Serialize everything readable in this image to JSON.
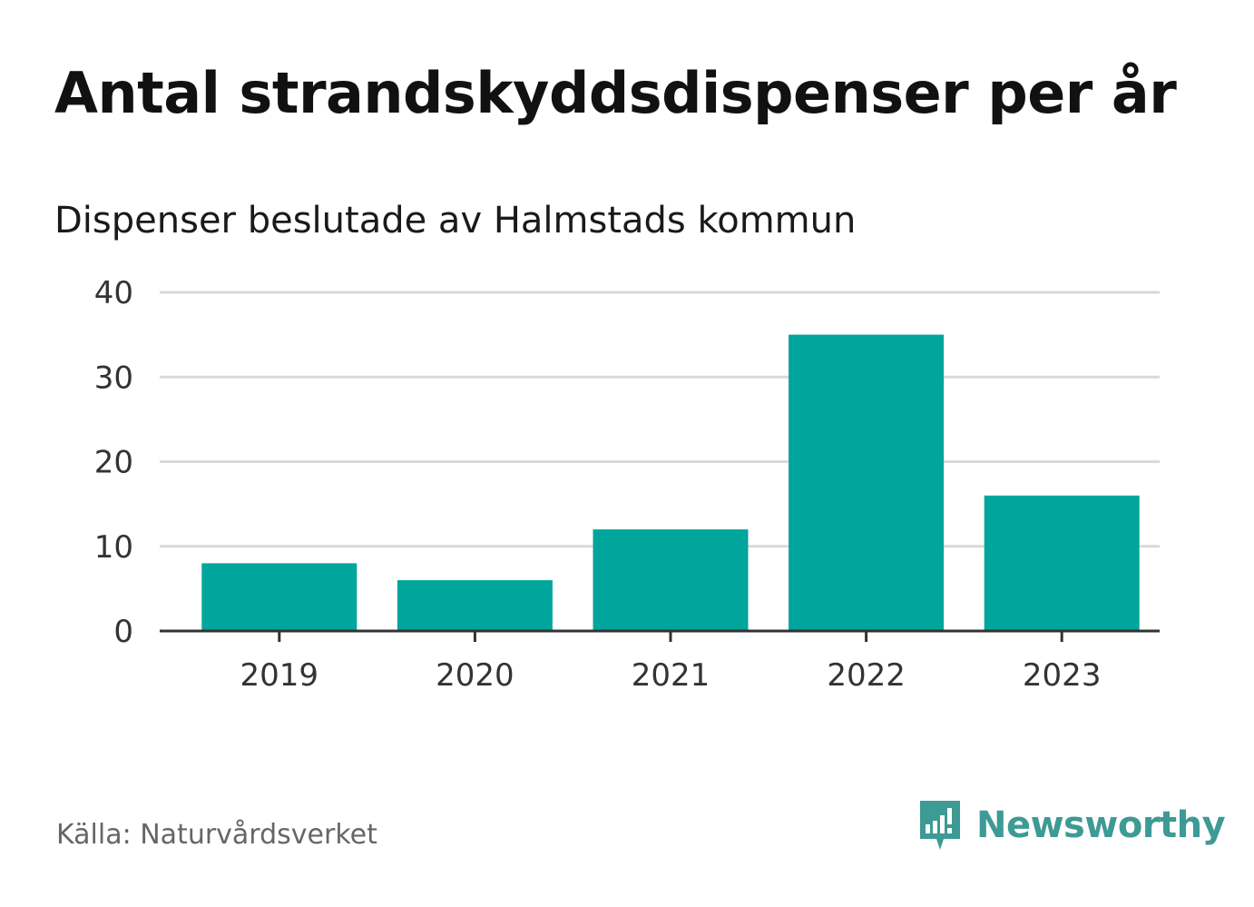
{
  "title": "Antal strandskyddsdispenser per år",
  "subtitle": "Dispenser beslutade av Halmstads kommun",
  "source": "Källa: Naturvårdsverket",
  "brand": {
    "name": "Newsworthy",
    "icon": "newsworthy-logo-icon",
    "color": "#3d9a94"
  },
  "colors": {
    "bar": "#00a59b",
    "grid": "#d9d9d9",
    "axis": "#333333",
    "tick_text": "#333333"
  },
  "chart_data": {
    "type": "bar",
    "title": "Antal strandskyddsdispenser per år",
    "subtitle": "Dispenser beslutade av Halmstads kommun",
    "categories": [
      "2019",
      "2020",
      "2021",
      "2022",
      "2023"
    ],
    "values": [
      8,
      6,
      12,
      35,
      16
    ],
    "xlabel": "",
    "ylabel": "",
    "ylim": [
      0,
      40
    ],
    "yticks": [
      0,
      10,
      20,
      30,
      40
    ],
    "grid": true
  }
}
